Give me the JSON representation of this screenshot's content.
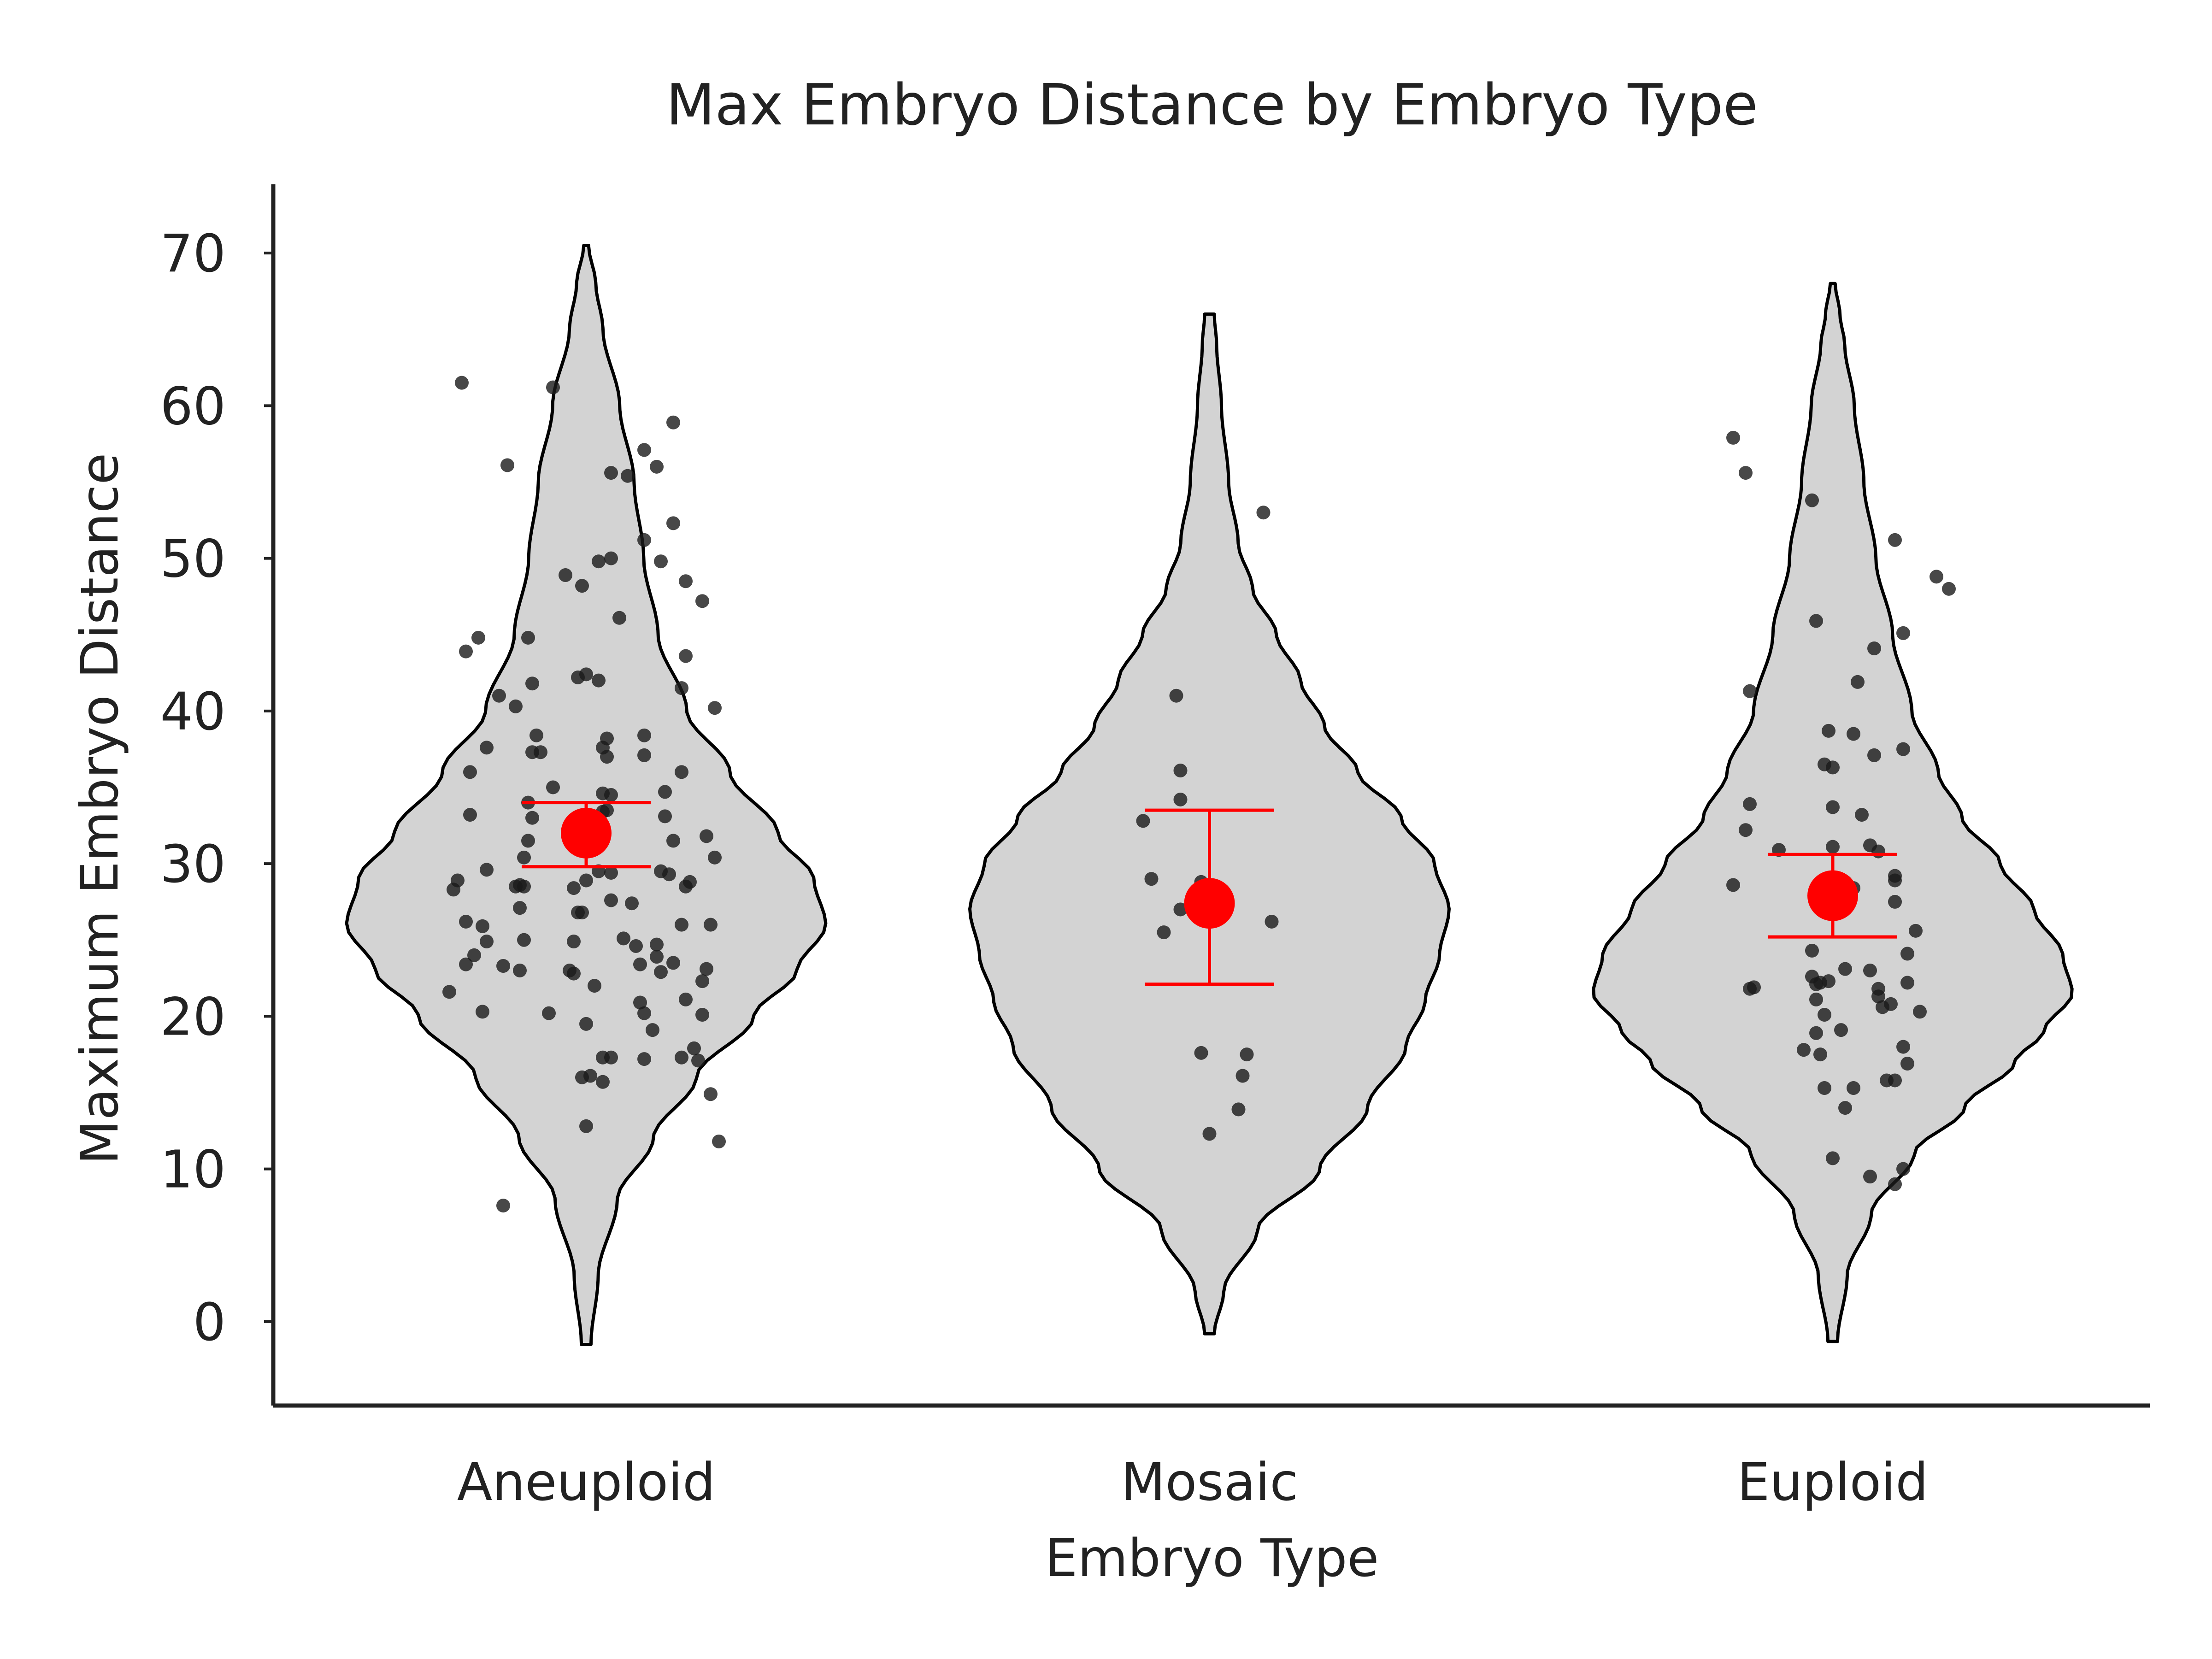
{
  "chart_data": {
    "type": "violin",
    "title": "Max Embryo Distance by Embryo Type",
    "xlabel": "Embryo Type",
    "ylabel": "Maximum Embryo Distance",
    "ylim": [
      -5.5,
      74.5
    ],
    "yticks": [
      0,
      10,
      20,
      30,
      40,
      50,
      60,
      70
    ],
    "grid": false,
    "legend": "none",
    "colors": {
      "violin_fill": "#d3d3d3",
      "violin_edge": "#000000",
      "points": "#1a1a1a",
      "mean_marker": "#ff0000",
      "axis": "#222222"
    },
    "categories": [
      "Aneuploid",
      "Mosaic",
      "Euploid"
    ],
    "groups": [
      {
        "name": "Aneuploid",
        "violin_range": [
          -1.5,
          70.5
        ],
        "violin_profile": [
          [
            -1.5,
            0.02
          ],
          [
            3,
            0.05
          ],
          [
            8,
            0.13
          ],
          [
            12,
            0.28
          ],
          [
            16,
            0.46
          ],
          [
            20,
            0.7
          ],
          [
            23,
            0.88
          ],
          [
            26,
            1.0
          ],
          [
            29,
            0.95
          ],
          [
            32,
            0.8
          ],
          [
            36,
            0.6
          ],
          [
            40,
            0.42
          ],
          [
            45,
            0.3
          ],
          [
            50,
            0.24
          ],
          [
            55,
            0.2
          ],
          [
            60,
            0.14
          ],
          [
            65,
            0.07
          ],
          [
            68,
            0.04
          ],
          [
            70.5,
            0.01
          ]
        ],
        "mean": 32.0,
        "ci": [
          29.8,
          34.0
        ],
        "points": [
          [
            -0.3,
            61.5
          ],
          [
            -0.08,
            61.2
          ],
          [
            -0.19,
            56.1
          ],
          [
            0.06,
            55.6
          ],
          [
            0.1,
            55.4
          ],
          [
            0.14,
            57.1
          ],
          [
            0.17,
            56.0
          ],
          [
            0.21,
            58.9
          ],
          [
            0.21,
            52.3
          ],
          [
            0.14,
            51.2
          ],
          [
            0.18,
            49.8
          ],
          [
            0.06,
            50.0
          ],
          [
            0.03,
            49.8
          ],
          [
            -0.05,
            48.9
          ],
          [
            -0.01,
            48.2
          ],
          [
            0.24,
            48.5
          ],
          [
            0.28,
            47.2
          ],
          [
            0.08,
            46.1
          ],
          [
            -0.29,
            43.9
          ],
          [
            -0.26,
            44.8
          ],
          [
            -0.14,
            44.8
          ],
          [
            0.24,
            43.6
          ],
          [
            0.23,
            41.5
          ],
          [
            -0.02,
            42.2
          ],
          [
            0.0,
            42.4
          ],
          [
            0.03,
            42.0
          ],
          [
            -0.13,
            41.8
          ],
          [
            -0.21,
            41.0
          ],
          [
            -0.17,
            40.3
          ],
          [
            0.31,
            40.2
          ],
          [
            -0.12,
            38.4
          ],
          [
            0.05,
            38.2
          ],
          [
            0.14,
            38.4
          ],
          [
            0.04,
            37.6
          ],
          [
            -0.24,
            37.6
          ],
          [
            -0.13,
            37.3
          ],
          [
            -0.11,
            37.3
          ],
          [
            0.05,
            37.0
          ],
          [
            0.14,
            37.1
          ],
          [
            -0.28,
            36.0
          ],
          [
            -0.08,
            35.0
          ],
          [
            0.23,
            36.0
          ],
          [
            0.19,
            34.7
          ],
          [
            -0.14,
            34.0
          ],
          [
            0.04,
            34.6
          ],
          [
            0.06,
            34.5
          ],
          [
            0.05,
            33.5
          ],
          [
            0.04,
            33.4
          ],
          [
            -0.28,
            33.2
          ],
          [
            -0.13,
            33.0
          ],
          [
            0.19,
            33.1
          ],
          [
            0.29,
            31.8
          ],
          [
            0.21,
            31.5
          ],
          [
            -0.14,
            31.5
          ],
          [
            0.02,
            31.6
          ],
          [
            -0.15,
            30.4
          ],
          [
            0.31,
            30.4
          ],
          [
            -0.24,
            29.6
          ],
          [
            0.03,
            29.5
          ],
          [
            0.06,
            29.4
          ],
          [
            0.18,
            29.5
          ],
          [
            0.2,
            29.3
          ],
          [
            -0.31,
            28.9
          ],
          [
            -0.32,
            28.3
          ],
          [
            -0.17,
            28.5
          ],
          [
            -0.15,
            28.5
          ],
          [
            -0.16,
            28.6
          ],
          [
            0.0,
            28.9
          ],
          [
            -0.03,
            28.4
          ],
          [
            0.25,
            28.8
          ],
          [
            0.24,
            28.5
          ],
          [
            0.06,
            27.6
          ],
          [
            0.11,
            27.4
          ],
          [
            -0.16,
            27.1
          ],
          [
            -0.02,
            26.8
          ],
          [
            -0.01,
            26.8
          ],
          [
            -0.29,
            26.2
          ],
          [
            -0.25,
            25.9
          ],
          [
            -0.24,
            24.9
          ],
          [
            -0.15,
            25.0
          ],
          [
            -0.03,
            24.9
          ],
          [
            0.09,
            25.1
          ],
          [
            0.12,
            24.6
          ],
          [
            0.17,
            24.7
          ],
          [
            0.23,
            26.0
          ],
          [
            0.3,
            26.0
          ],
          [
            -0.27,
            24.0
          ],
          [
            -0.29,
            23.4
          ],
          [
            -0.2,
            23.3
          ],
          [
            -0.16,
            23.0
          ],
          [
            -0.04,
            23.0
          ],
          [
            -0.03,
            22.8
          ],
          [
            0.13,
            23.4
          ],
          [
            0.17,
            23.9
          ],
          [
            0.21,
            23.5
          ],
          [
            0.18,
            22.9
          ],
          [
            0.29,
            23.1
          ],
          [
            0.28,
            22.3
          ],
          [
            -0.33,
            21.6
          ],
          [
            0.02,
            22.0
          ],
          [
            0.13,
            20.9
          ],
          [
            0.14,
            20.2
          ],
          [
            0.24,
            21.1
          ],
          [
            0.28,
            20.1
          ],
          [
            -0.25,
            20.3
          ],
          [
            -0.09,
            20.2
          ],
          [
            0.0,
            19.5
          ],
          [
            0.16,
            19.1
          ],
          [
            0.26,
            17.9
          ],
          [
            0.27,
            17.1
          ],
          [
            0.04,
            17.3
          ],
          [
            0.06,
            17.3
          ],
          [
            0.14,
            17.2
          ],
          [
            0.23,
            17.3
          ],
          [
            -0.01,
            16.0
          ],
          [
            0.01,
            16.1
          ],
          [
            0.04,
            15.7
          ],
          [
            0.3,
            14.9
          ],
          [
            0.0,
            12.8
          ],
          [
            0.32,
            11.8
          ],
          [
            -0.2,
            7.6
          ]
        ]
      },
      {
        "name": "Mosaic",
        "violin_range": [
          -0.8,
          66.0
        ],
        "violin_profile": [
          [
            -0.8,
            0.02
          ],
          [
            2,
            0.06
          ],
          [
            6,
            0.2
          ],
          [
            10,
            0.46
          ],
          [
            14,
            0.66
          ],
          [
            18,
            0.82
          ],
          [
            21,
            0.9
          ],
          [
            24,
            0.96
          ],
          [
            27,
            1.0
          ],
          [
            30,
            0.94
          ],
          [
            33,
            0.8
          ],
          [
            36,
            0.62
          ],
          [
            39,
            0.48
          ],
          [
            42,
            0.38
          ],
          [
            45,
            0.28
          ],
          [
            48,
            0.18
          ],
          [
            51,
            0.12
          ],
          [
            55,
            0.08
          ],
          [
            60,
            0.05
          ],
          [
            64,
            0.03
          ],
          [
            66.0,
            0.02
          ]
        ],
        "mean": 27.4,
        "ci": [
          22.1,
          33.5
        ],
        "points": [
          [
            0.13,
            53.0
          ],
          [
            -0.08,
            41.0
          ],
          [
            -0.07,
            36.1
          ],
          [
            -0.07,
            34.2
          ],
          [
            -0.16,
            32.8
          ],
          [
            -0.14,
            29.0
          ],
          [
            -0.07,
            27.0
          ],
          [
            -0.02,
            28.8
          ],
          [
            0.15,
            26.2
          ],
          [
            -0.11,
            25.5
          ],
          [
            -0.02,
            17.6
          ],
          [
            0.09,
            17.5
          ],
          [
            0.08,
            16.1
          ],
          [
            0.07,
            13.9
          ],
          [
            0.0,
            12.3
          ]
        ]
      },
      {
        "name": "Euploid",
        "violin_range": [
          -1.3,
          68.0
        ],
        "violin_profile": [
          [
            -1.3,
            0.02
          ],
          [
            3,
            0.06
          ],
          [
            7,
            0.16
          ],
          [
            11,
            0.34
          ],
          [
            14,
            0.55
          ],
          [
            17,
            0.76
          ],
          [
            19,
            0.88
          ],
          [
            21.5,
            1.0
          ],
          [
            24,
            0.96
          ],
          [
            27,
            0.84
          ],
          [
            30,
            0.7
          ],
          [
            33,
            0.54
          ],
          [
            36,
            0.44
          ],
          [
            40,
            0.33
          ],
          [
            45,
            0.25
          ],
          [
            50,
            0.18
          ],
          [
            55,
            0.13
          ],
          [
            60,
            0.09
          ],
          [
            64,
            0.05
          ],
          [
            66,
            0.03
          ],
          [
            68.0,
            0.01
          ]
        ],
        "mean": 27.9,
        "ci": [
          25.2,
          30.6
        ],
        "points": [
          [
            -0.24,
            57.9
          ],
          [
            -0.21,
            55.6
          ],
          [
            -0.05,
            53.8
          ],
          [
            0.15,
            51.2
          ],
          [
            0.25,
            48.8
          ],
          [
            0.28,
            48.0
          ],
          [
            0.17,
            45.1
          ],
          [
            -0.04,
            45.9
          ],
          [
            0.1,
            44.1
          ],
          [
            0.06,
            41.9
          ],
          [
            -0.2,
            41.3
          ],
          [
            -0.01,
            38.7
          ],
          [
            0.05,
            38.5
          ],
          [
            0.17,
            37.5
          ],
          [
            0.1,
            37.1
          ],
          [
            0.0,
            36.3
          ],
          [
            -0.02,
            36.5
          ],
          [
            0.0,
            33.7
          ],
          [
            -0.2,
            33.9
          ],
          [
            0.07,
            33.2
          ],
          [
            0.09,
            31.2
          ],
          [
            -0.21,
            32.2
          ],
          [
            -0.13,
            30.9
          ],
          [
            0.0,
            31.1
          ],
          [
            0.11,
            30.8
          ],
          [
            0.15,
            29.2
          ],
          [
            0.15,
            28.9
          ],
          [
            -0.24,
            28.6
          ],
          [
            0.05,
            28.4
          ],
          [
            0.03,
            28.8
          ],
          [
            0.15,
            27.5
          ],
          [
            0.2,
            25.6
          ],
          [
            -0.05,
            24.3
          ],
          [
            0.03,
            23.1
          ],
          [
            0.09,
            23.0
          ],
          [
            0.11,
            21.8
          ],
          [
            0.11,
            21.3
          ],
          [
            0.14,
            20.8
          ],
          [
            0.12,
            20.6
          ],
          [
            -0.05,
            22.6
          ],
          [
            -0.03,
            22.2
          ],
          [
            -0.04,
            22.1
          ],
          [
            -0.01,
            22.3
          ],
          [
            -0.04,
            21.1
          ],
          [
            -0.2,
            21.8
          ],
          [
            -0.19,
            21.9
          ],
          [
            0.18,
            24.1
          ],
          [
            0.18,
            22.2
          ],
          [
            0.21,
            20.3
          ],
          [
            -0.02,
            20.1
          ],
          [
            0.02,
            19.1
          ],
          [
            -0.04,
            18.9
          ],
          [
            -0.07,
            17.8
          ],
          [
            -0.03,
            17.5
          ],
          [
            0.17,
            18.0
          ],
          [
            0.18,
            16.9
          ],
          [
            0.15,
            15.8
          ],
          [
            0.13,
            15.8
          ],
          [
            0.05,
            15.3
          ],
          [
            -0.02,
            15.3
          ],
          [
            0.03,
            14.0
          ],
          [
            0.0,
            10.7
          ],
          [
            0.09,
            9.5
          ],
          [
            0.17,
            10.0
          ],
          [
            0.15,
            9.0
          ]
        ]
      }
    ]
  }
}
